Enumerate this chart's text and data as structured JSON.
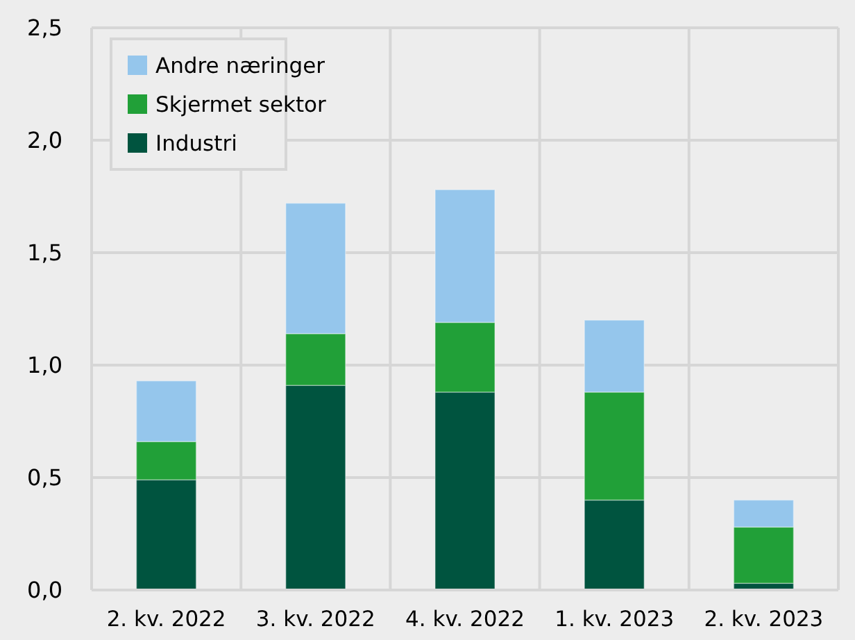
{
  "chart_data": {
    "type": "bar",
    "stacked": true,
    "categories": [
      "2. kv. 2022",
      "3. kv. 2022",
      "4. kv. 2022",
      "1. kv. 2023",
      "2. kv. 2023"
    ],
    "series": [
      {
        "name": "Industri",
        "color": "#00543f",
        "values": [
          0.49,
          0.91,
          0.88,
          0.4,
          0.03
        ]
      },
      {
        "name": "Skjermet sektor",
        "color": "#21a038",
        "values": [
          0.17,
          0.23,
          0.31,
          0.48,
          0.25
        ]
      },
      {
        "name": "Andre næringer",
        "color": "#95c6ec",
        "values": [
          0.27,
          0.58,
          0.59,
          0.32,
          0.12
        ]
      }
    ],
    "ylim": [
      0,
      2.5
    ],
    "yticks": [
      {
        "value": 0,
        "label": "0,0"
      },
      {
        "value": 0.5,
        "label": "0,5"
      },
      {
        "value": 1,
        "label": "1,0"
      },
      {
        "value": 1.5,
        "label": "1,5"
      },
      {
        "value": 2,
        "label": "2,0"
      },
      {
        "value": 2.5,
        "label": "2,5"
      }
    ],
    "grid": true,
    "legend": "top left"
  }
}
